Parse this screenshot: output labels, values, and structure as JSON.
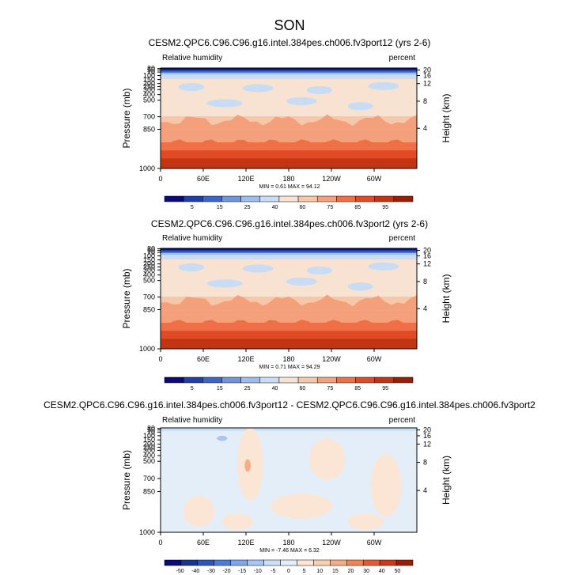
{
  "page": {
    "title": "SON"
  },
  "colors": {
    "abs_palette": [
      "#0a0a78",
      "#1f3ea8",
      "#3a66cc",
      "#6e96df",
      "#9dbdec",
      "#c8dcf4",
      "#f8e3d3",
      "#f7c7a9",
      "#f4a07b",
      "#ef6f47",
      "#e04a24",
      "#c33412",
      "#9a1d06"
    ],
    "diff_palette": [
      "#0a0a78",
      "#17348f",
      "#2f56b6",
      "#4d7bd6",
      "#7ea6e8",
      "#a8c6f0",
      "#cbdff7",
      "#e3eef9",
      "#fbe6d5",
      "#f9cfb2",
      "#f5ad88",
      "#ee8559",
      "#e25a32",
      "#c9391a",
      "#9a1d06"
    ]
  },
  "chart_data": [
    {
      "type": "heatmap",
      "name": "model-1",
      "title": "CESM2.QPC6.C96.C96.g16.intel.384pes.ch006.fv3port12 (yrs 2-6)",
      "left_label": "Relative humidity",
      "right_label": "percent",
      "ylabel": "Pressure (mb)",
      "right_axis_label": "Height (km)",
      "y_ticks": [
        "30",
        "50",
        "70",
        "100",
        "150",
        "200",
        "250",
        "300",
        "400",
        "500",
        "700",
        "850",
        "1000"
      ],
      "height_ticks": [
        "4",
        "8",
        "12",
        "16",
        "20"
      ],
      "x_ticks": [
        "0",
        "60E",
        "120E",
        "180",
        "120W",
        "60W"
      ],
      "minmax": "MIN =   0.61   MAX =  94.12",
      "colorbar": {
        "type": "abs",
        "labels": [
          "5",
          "15",
          "25",
          "40",
          "60",
          "75",
          "85",
          "95"
        ]
      }
    },
    {
      "type": "heatmap",
      "name": "model-2",
      "title": "CESM2.QPC6.C96.C96.g16.intel.384pes.ch006.fv3port2 (yrs 2-6)",
      "left_label": "Relative humidity",
      "right_label": "percent",
      "ylabel": "Pressure (mb)",
      "right_axis_label": "Height (km)",
      "y_ticks": [
        "30",
        "50",
        "70",
        "100",
        "150",
        "200",
        "250",
        "300",
        "400",
        "500",
        "700",
        "850",
        "1000"
      ],
      "height_ticks": [
        "4",
        "8",
        "12",
        "16",
        "20"
      ],
      "x_ticks": [
        "0",
        "60E",
        "120E",
        "180",
        "120W",
        "60W"
      ],
      "minmax": "MIN =   0.71   MAX =  94.29",
      "colorbar": {
        "type": "abs",
        "labels": [
          "5",
          "15",
          "25",
          "40",
          "60",
          "75",
          "85",
          "95"
        ]
      }
    },
    {
      "type": "heatmap",
      "name": "difference",
      "title": "CESM2.QPC6.C96.C96.g16.intel.384pes.ch006.fv3port12 - CESM2.QPC6.C96.C96.g16.intel.384pes.ch006.fv3port2",
      "left_label": "Relative humidity",
      "right_label": "percent",
      "ylabel": "Pressure (mb)",
      "right_axis_label": "Height (km)",
      "y_ticks": [
        "30",
        "50",
        "70",
        "100",
        "150",
        "200",
        "250",
        "300",
        "400",
        "500",
        "700",
        "850",
        "1000"
      ],
      "height_ticks": [
        "4",
        "8",
        "12",
        "16",
        "20"
      ],
      "x_ticks": [
        "0",
        "60E",
        "120E",
        "180",
        "120W",
        "60W"
      ],
      "minmax": "MIN =  -7.46   MAX =   6.32",
      "colorbar": {
        "type": "diff",
        "labels": [
          "-50",
          "-40",
          "-30",
          "-20",
          "-15",
          "-10",
          "-5",
          "0",
          "5",
          "10",
          "15",
          "20",
          "30",
          "40",
          "50"
        ]
      }
    }
  ]
}
